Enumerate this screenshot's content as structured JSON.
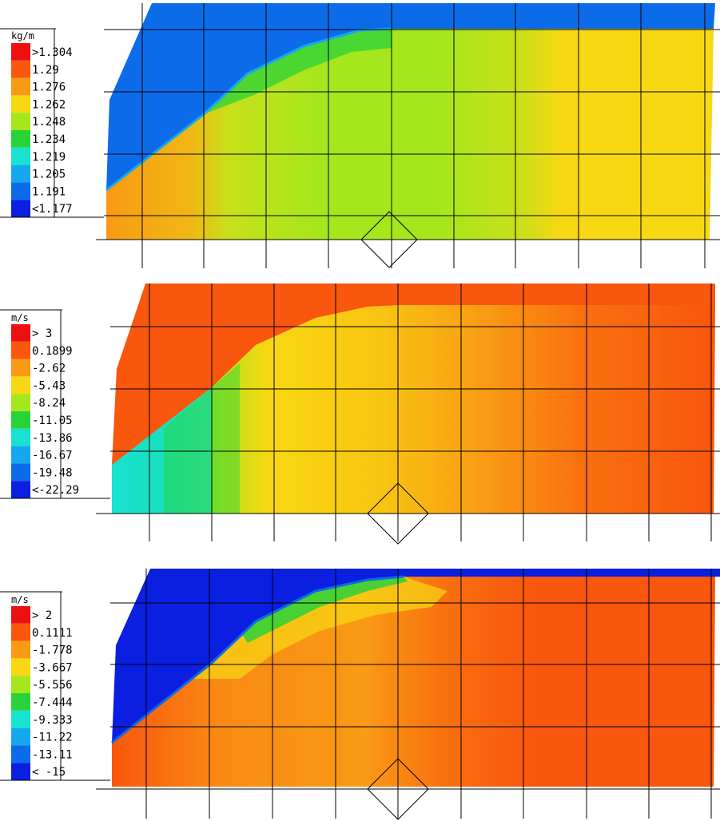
{
  "colors": {
    "scale": [
      "#0a1fe0",
      "#0c6be8",
      "#15a8ee",
      "#18e2d0",
      "#2ad23a",
      "#a6e61c",
      "#f8d812",
      "#f99a14",
      "#f9560e",
      "#ee1010"
    ],
    "outside_blue": "#0c6be8",
    "outside_orange": "#f9560e",
    "deep_blue": "#0a1fe0"
  },
  "chart_data": [
    {
      "type": "heatmap",
      "unit": "kg/m",
      "legend": [
        ">1.304",
        "1.29",
        "1.276",
        "1.262",
        "1.248",
        "1.234",
        "1.219",
        "1.205",
        "1.191",
        "<1.177"
      ],
      "legend_range": [
        1.177,
        1.304
      ]
    },
    {
      "type": "heatmap",
      "unit": "m/s",
      "legend": [
        ">  3",
        "0.1899",
        "-2.62",
        "-5.43",
        "-8.24",
        "-11.05",
        "-13.86",
        "-16.67",
        "-19.48",
        "<-22.29"
      ],
      "legend_range": [
        -22.29,
        3
      ]
    },
    {
      "type": "heatmap",
      "unit": "m/s",
      "legend": [
        ">  2",
        "0.1111",
        "-1.778",
        "-3.667",
        "-5.556",
        "-7.444",
        "-9.333",
        "-11.22",
        "-13.11",
        "< -15"
      ],
      "legend_range": [
        -15,
        2
      ]
    }
  ]
}
